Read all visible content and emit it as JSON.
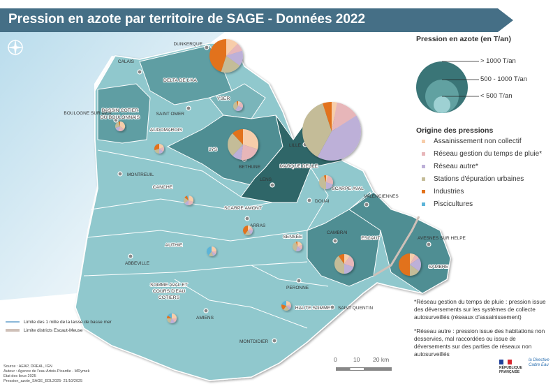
{
  "title": "Pression en azote par territoire de SAGE - Données 2022",
  "legend": {
    "size_title": "Pression en azote (en T/an)",
    "size_classes": [
      "> 1000 T/an",
      "500 - 1000  T/an",
      "< 500 T/an"
    ],
    "origin_title": "Origine des pressions",
    "origins": [
      {
        "label": "Assainissement non collectif",
        "color": "#f7cdaa"
      },
      {
        "label": "Réseau gestion du temps de pluie*",
        "color": "#e7b6b9"
      },
      {
        "label": "Réseau autre*",
        "color": "#bdb0d8"
      },
      {
        "label": "Stations d'épuration urbaines",
        "color": "#c4bc98"
      },
      {
        "label": "Industries",
        "color": "#e2721d"
      },
      {
        "label": "Piscicultures",
        "color": "#5cb4d8"
      }
    ]
  },
  "colors": {
    "sea": "#cfe6f1",
    "land": "#90c8cd",
    "land_mid": "#5f9ea3",
    "land_dark": "#3f7f83",
    "land_darkest": "#2f6668",
    "title_bar": "#456f86"
  },
  "cities": [
    "DUNKERQUE",
    "CALAIS",
    "BOULOGNE SUR MER",
    "SAINT OMER",
    "LILLE",
    "BETHUNE",
    "LENS",
    "DOUAI",
    "VALENCIENNES",
    "MONTREUIL",
    "ARRAS",
    "CAMBRAI",
    "AVESNES SUR HELPE",
    "ABBEVILLE",
    "AMIENS",
    "PERONNE",
    "SAINT QUENTIN",
    "MONTDIDIER"
  ],
  "sages": [
    "DELTA DE L'AA",
    "YSER",
    "BASSIN COTIER",
    "DU BOULONNAIS",
    "AUDOMAROIS",
    "LYS",
    "MARQUE DEULE",
    "SCARPE AVAL",
    "CANCHE",
    "SCARPE AMONT",
    "AUTHIE",
    "SENSÉE",
    "ESCAUT",
    "SAMBRE",
    "HAUTE SOMME",
    "SOMME AVAL ET",
    "COURS D'EAU",
    "COTIERS"
  ],
  "pies": [
    {
      "sage": "Delta de l'Aa",
      "size_class": "500 - 1000  T/an",
      "shares": [
        0.12,
        0.08,
        0.15,
        0.2,
        0.45,
        0
      ]
    },
    {
      "sage": "Yser",
      "size_class": "< 500 T/an",
      "shares": [
        0.1,
        0.2,
        0.3,
        0.35,
        0.05,
        0
      ]
    },
    {
      "sage": "Bassin côtier du Boulonnais",
      "size_class": "< 500 T/an",
      "shares": [
        0.35,
        0.2,
        0.15,
        0.25,
        0.05,
        0
      ]
    },
    {
      "sage": "Audomarois",
      "size_class": "< 500 T/an",
      "shares": [
        0.2,
        0.15,
        0.15,
        0.2,
        0.3,
        0
      ]
    },
    {
      "sage": "Lys",
      "size_class": "500 - 1000  T/an",
      "shares": [
        0.3,
        0.22,
        0.1,
        0.26,
        0.12,
        0
      ]
    },
    {
      "sage": "Marque Deule",
      "size_class": "> 1000 T/an",
      "shares": [
        0.03,
        0.13,
        0.42,
        0.37,
        0.05,
        0
      ]
    },
    {
      "sage": "Scarpe aval",
      "size_class": "< 500 T/an",
      "shares": [
        0.05,
        0.25,
        0.2,
        0.45,
        0.05,
        0
      ]
    },
    {
      "sage": "Canche",
      "size_class": "< 500 T/an",
      "shares": [
        0.3,
        0.2,
        0.15,
        0.2,
        0.1,
        0.05
      ]
    },
    {
      "sage": "Scarpe amont",
      "size_class": "< 500 T/an",
      "shares": [
        0.15,
        0.1,
        0.15,
        0.2,
        0.4,
        0
      ]
    },
    {
      "sage": "Authie",
      "size_class": "< 500 T/an",
      "shares": [
        0.25,
        0.1,
        0.1,
        0.15,
        0,
        0.4
      ]
    },
    {
      "sage": "Sensée",
      "size_class": "< 500 T/an",
      "shares": [
        0.2,
        0.15,
        0.2,
        0.4,
        0.05,
        0
      ]
    },
    {
      "sage": "Escaut",
      "size_class": "< 500 T/an",
      "shares": [
        0.1,
        0.2,
        0.2,
        0.4,
        0.1,
        0
      ]
    },
    {
      "sage": "Sambre",
      "size_class": "< 500 T/an",
      "shares": [
        0.08,
        0.07,
        0.2,
        0.15,
        0.5,
        0
      ]
    },
    {
      "sage": "Haute Somme",
      "size_class": "< 500 T/an",
      "shares": [
        0.2,
        0.1,
        0.1,
        0.2,
        0.2,
        0.2
      ]
    },
    {
      "sage": "Somme aval et cours d'eau côtiers",
      "size_class": "< 500 T/an",
      "shares": [
        0.25,
        0.15,
        0.15,
        0.2,
        0.1,
        0.15
      ]
    }
  ],
  "line_legend": [
    "Limite des 1 mille de la laisse de basse mer",
    "Limite districts Escaut-Meuse"
  ],
  "notes": [
    "*Réseau gestion du temps de pluie : pression issue des déversements sur les systèmes de collecte autosurveillés (réseaux d'assainissement)",
    "*Réseau autre :  pression issue des habitations non desservies, mal raccordées ou issue de déversements sur des parties de réseaux non autosurveillés"
  ],
  "source": [
    "Source : AEAP, DREAL, IGN",
    "Auteur : Agence de l'eau Artois-Picardie - MRymek",
    "Etat des lieux 2025",
    "Pression_azote_SAGE_EDL2025- 21/10/2025"
  ],
  "scale": {
    "labels": [
      "0",
      "10",
      "20 km"
    ]
  },
  "logos": {
    "republique": "RÉPUBLIQUE FRANÇAISE",
    "dce": "la Directive Cadre Eau"
  }
}
